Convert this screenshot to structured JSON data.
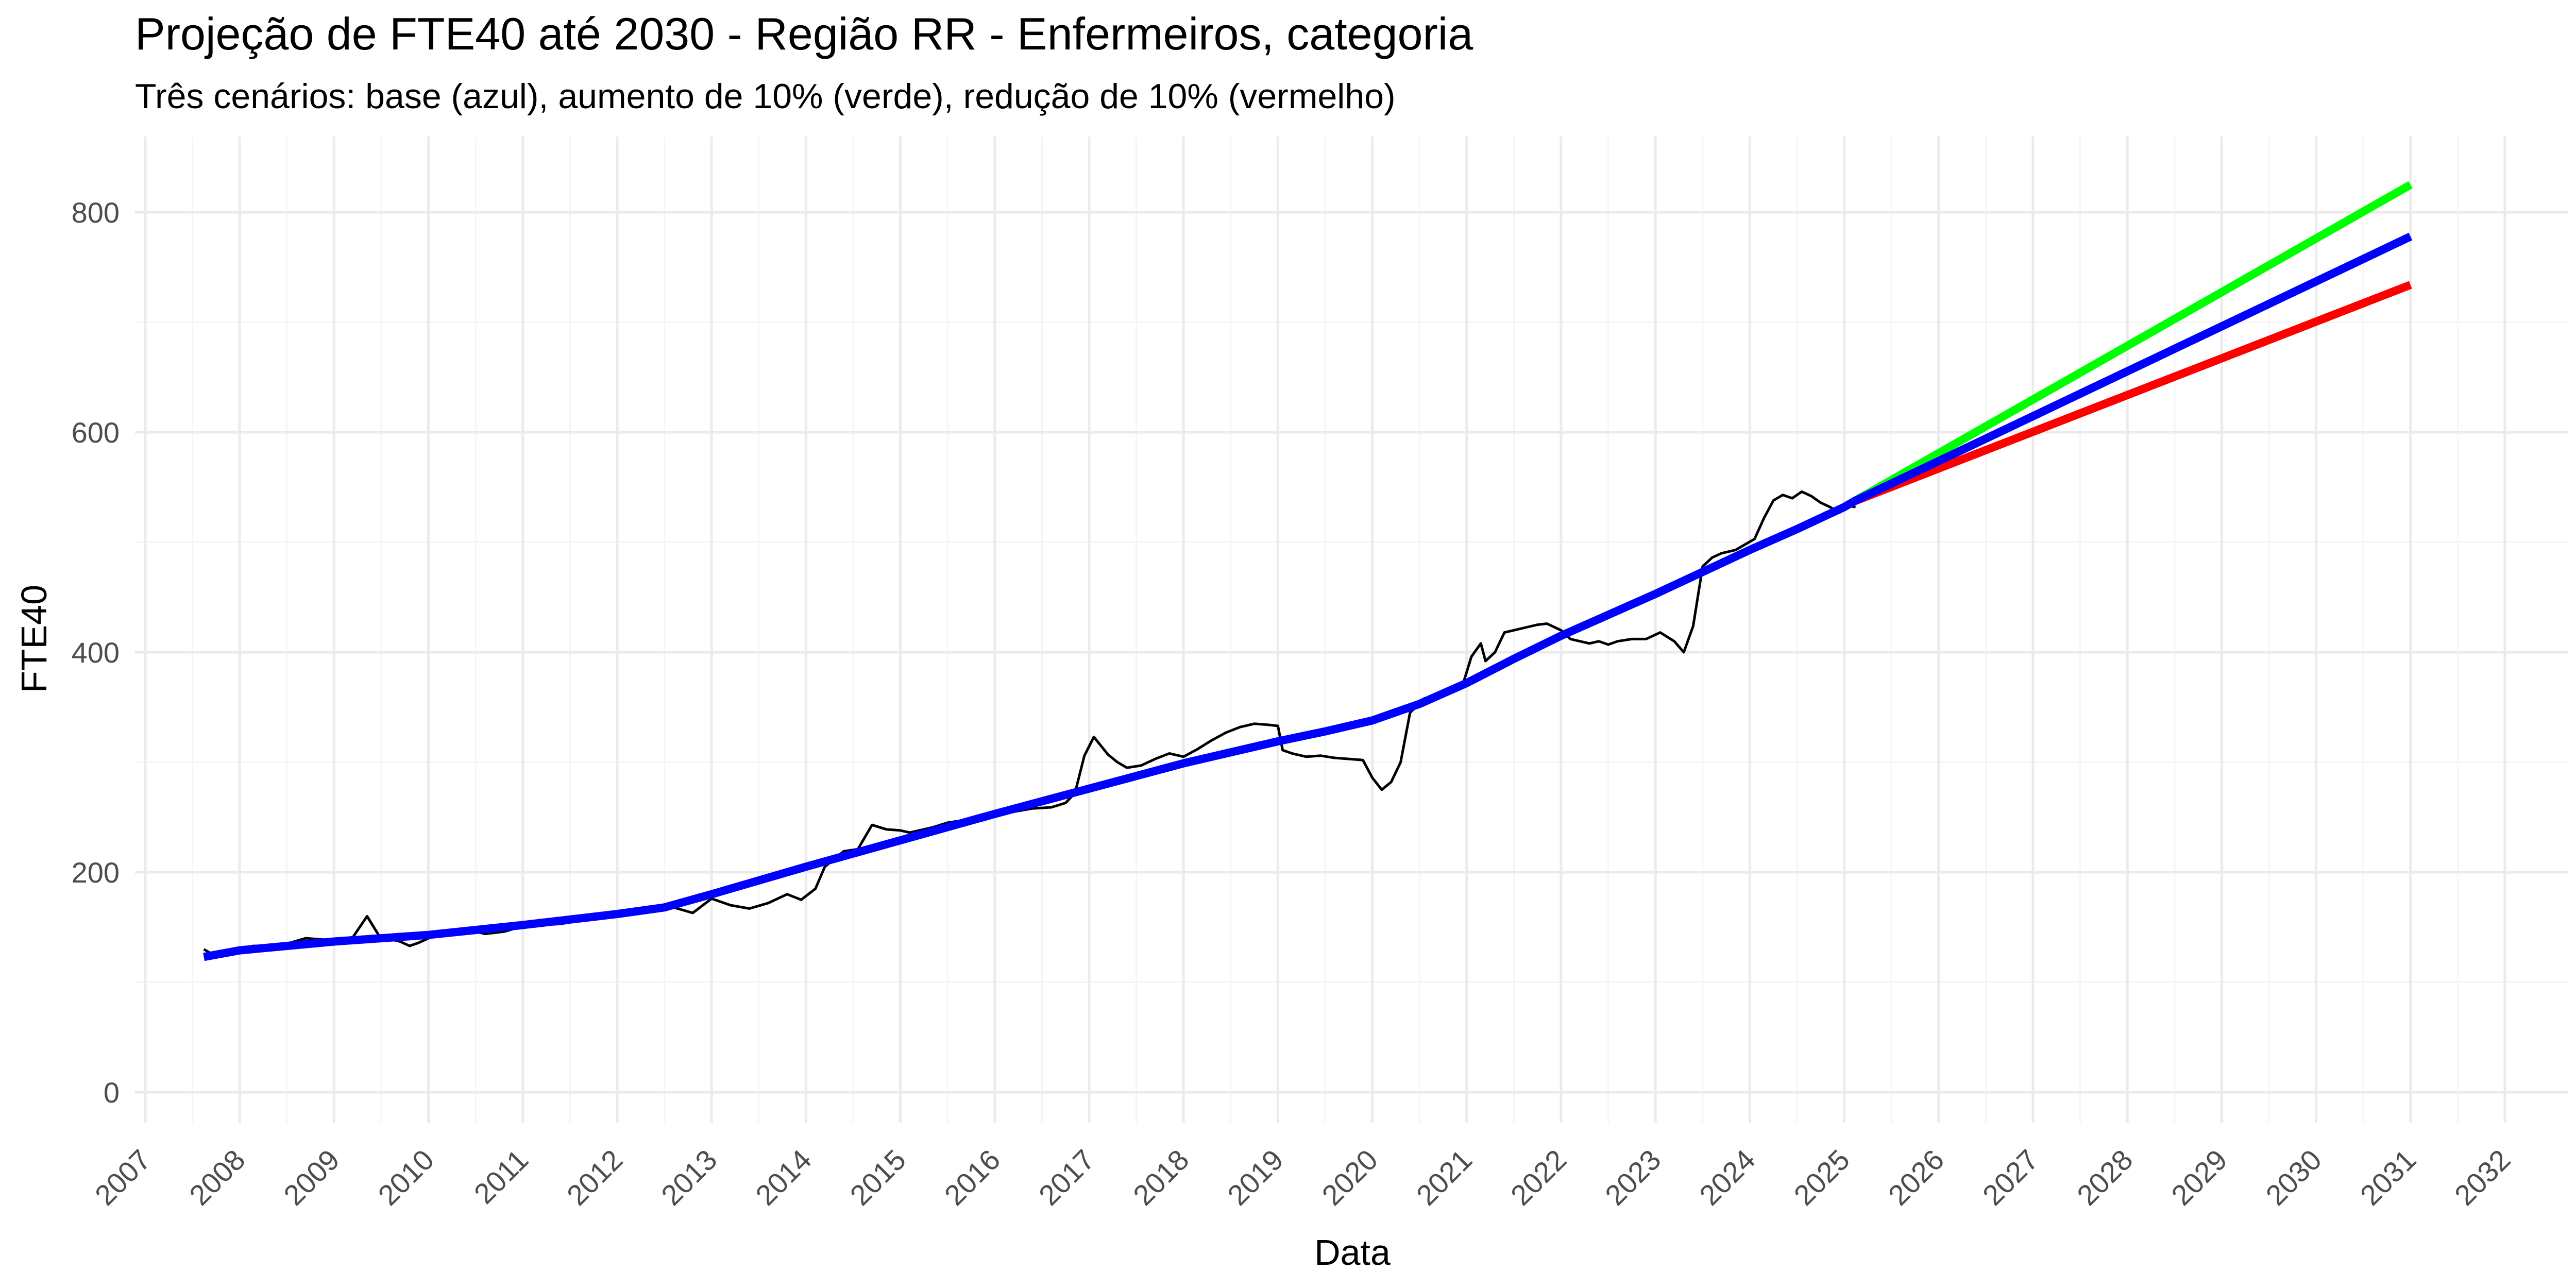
{
  "chart_data": {
    "type": "line",
    "title": "Projeção de FTE40 até 2030 - Região RR - Enfermeiros, categoria",
    "subtitle": "Três cenários: base (azul), aumento de 10% (verde), redução de 10% (vermelho)",
    "xlabel": "Data",
    "ylabel": "FTE40",
    "xlim": [
      2007.0,
      2032.0
    ],
    "ylim": [
      0,
      800
    ],
    "x_ticks": [
      "2007",
      "2008",
      "2009",
      "2010",
      "2011",
      "2012",
      "2013",
      "2014",
      "2015",
      "2016",
      "2017",
      "2018",
      "2019",
      "2020",
      "2021",
      "2022",
      "2023",
      "2024",
      "2025",
      "2026",
      "2027",
      "2028",
      "2029",
      "2030",
      "2031",
      "2032"
    ],
    "y_ticks": [
      "0",
      "200",
      "400",
      "600",
      "800"
    ],
    "grid": true,
    "legend": "none",
    "colors": {
      "observed": "#000000",
      "base": "#0000ff",
      "increase": "#00ff00",
      "decrease": "#ff0000",
      "grid_major": "#ebebeb",
      "grid_minor": "#f5f5f5"
    },
    "series": [
      {
        "color": "#000000",
        "style": "thin",
        "x": [
          2007.62,
          2007.7,
          2007.8,
          2007.9,
          2008.0,
          2008.15,
          2008.3,
          2008.5,
          2008.7,
          2008.85,
          2009.0,
          2009.2,
          2009.35,
          2009.5,
          2009.55,
          2009.6,
          2009.7,
          2009.8,
          2009.9,
          2010.0,
          2010.1,
          2010.2,
          2010.4,
          2010.6,
          2010.8,
          2011.0,
          2011.2,
          2011.4,
          2011.6,
          2011.8,
          2012.0,
          2012.2,
          2012.4,
          2012.6,
          2012.8,
          2013.0,
          2013.2,
          2013.4,
          2013.6,
          2013.8,
          2013.95,
          2014.1,
          2014.2,
          2014.4,
          2014.55,
          2014.7,
          2014.85,
          2015.0,
          2015.1,
          2015.2,
          2015.35,
          2015.5,
          2015.65,
          2015.8,
          2016.0,
          2016.2,
          2016.4,
          2016.6,
          2016.75,
          2016.85,
          2016.95,
          2017.05,
          2017.2,
          2017.3,
          2017.4,
          2017.55,
          2017.7,
          2017.85,
          2018.0,
          2018.15,
          2018.3,
          2018.45,
          2018.6,
          2018.75,
          2018.9,
          2019.0,
          2019.05,
          2019.15,
          2019.3,
          2019.45,
          2019.6,
          2019.75,
          2019.9,
          2020.0,
          2020.1,
          2020.2,
          2020.3,
          2020.4,
          2020.55,
          2020.7,
          2020.8,
          2020.95,
          2021.05,
          2021.15,
          2021.2,
          2021.3,
          2021.4,
          2021.5,
          2021.6,
          2021.75,
          2021.85,
          2022.0,
          2022.1,
          2022.2,
          2022.3,
          2022.4,
          2022.5,
          2022.6,
          2022.75,
          2022.9,
          2023.05,
          2023.2,
          2023.3,
          2023.4,
          2023.5,
          2023.6,
          2023.7,
          2023.85,
          2023.95,
          2024.05,
          2024.15,
          2024.25,
          2024.35,
          2024.45,
          2024.55,
          2024.65,
          2024.75,
          2024.85,
          2024.95,
          2025.05,
          2025.12
        ],
        "y": [
          130,
          126,
          128,
          127,
          131,
          133,
          132,
          135,
          140,
          139,
          138,
          141,
          160,
          139,
          141,
          139,
          137,
          133,
          136,
          140,
          143,
          146,
          148,
          144,
          146,
          151,
          152,
          153,
          156,
          158,
          160,
          162,
          166,
          168,
          163,
          176,
          170,
          167,
          172,
          180,
          175,
          185,
          205,
          219,
          221,
          243,
          239,
          238,
          236,
          238,
          241,
          245,
          247,
          250,
          253,
          255,
          258,
          259,
          263,
          272,
          306,
          323,
          307,
          300,
          295,
          297,
          303,
          308,
          305,
          312,
          320,
          327,
          332,
          335,
          334,
          333,
          311,
          308,
          305,
          306,
          304,
          303,
          302,
          286,
          275,
          282,
          300,
          345,
          358,
          362,
          366,
          368,
          396,
          408,
          392,
          400,
          418,
          420,
          422,
          425,
          426,
          420,
          412,
          410,
          408,
          410,
          407,
          410,
          412,
          412,
          418,
          410,
          400,
          424,
          478,
          486,
          490,
          493,
          498,
          503,
          522,
          538,
          543,
          540,
          546,
          542,
          536,
          532,
          527,
          533,
          532
        ]
      },
      {
        "color": "#0000ff",
        "style": "thick",
        "x": [
          2007.62,
          2008,
          2009,
          2010,
          2011,
          2012,
          2012.5,
          2013,
          2014,
          2015,
          2016,
          2017,
          2018,
          2019,
          2019.5,
          2020,
          2020.5,
          2021,
          2021.5,
          2022,
          2022.5,
          2023,
          2023.5,
          2024,
          2024.5,
          2025,
          2025.1
        ],
        "y": [
          123,
          129,
          137,
          143,
          152,
          162,
          168,
          180,
          205,
          229,
          253,
          276,
          299,
          319,
          328,
          338,
          353,
          372,
          394,
          415,
          434,
          453,
          473,
          493,
          512,
          532,
          537
        ]
      },
      {
        "color": "#00ff00",
        "style": "thick",
        "x": [
          2025.1,
          2031.0
        ],
        "y": [
          537,
          825
        ]
      },
      {
        "color": "#ff0000",
        "style": "thick",
        "x": [
          2025.1,
          2031.0
        ],
        "y": [
          537,
          734
        ]
      },
      {
        "color": "#0000ff",
        "style": "thick",
        "x": [
          2025.1,
          2031.0
        ],
        "y": [
          537,
          778
        ]
      }
    ]
  }
}
